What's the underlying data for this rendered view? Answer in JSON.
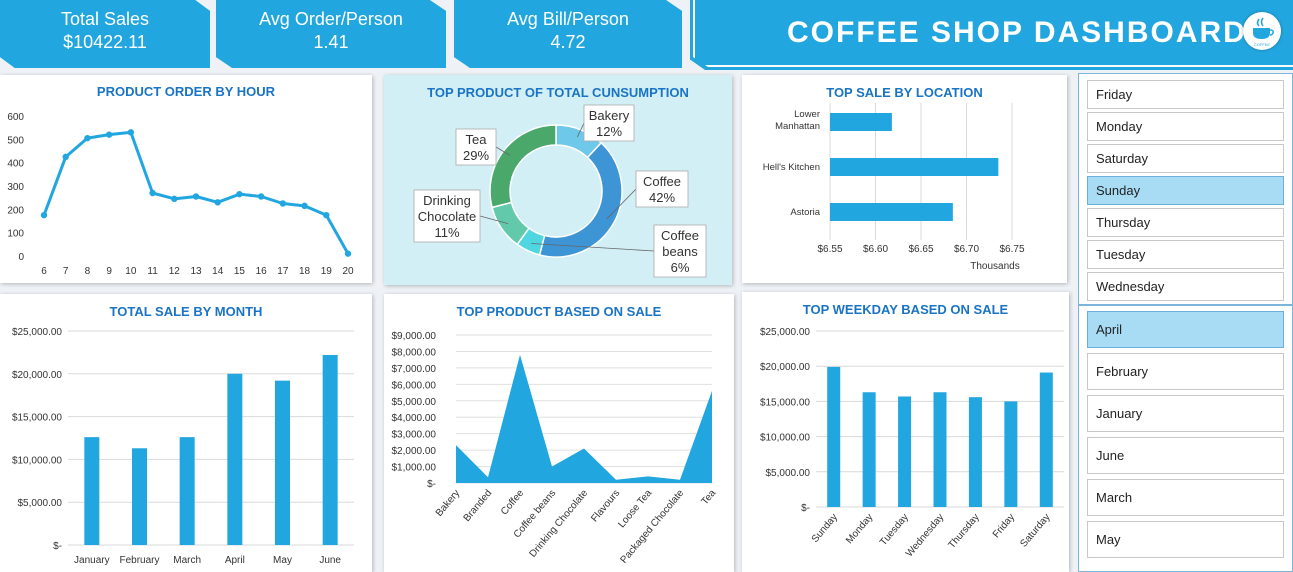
{
  "kpis": [
    {
      "label": "Total Sales",
      "value": "$10422.11"
    },
    {
      "label": "Avg Order/Person",
      "value": "1.41"
    },
    {
      "label": "Avg Bill/Person",
      "value": "4.72"
    }
  ],
  "dashboard_title": "COFFEE SHOP DASHBOARD",
  "logo_text": "COFFEE",
  "colors": {
    "accent": "#22a6e0",
    "title": "#1a74c5",
    "bar": "#22a6e0",
    "panel_teal": "#d2eff5"
  },
  "slicers": {
    "weekdays": {
      "items": [
        "Friday",
        "Monday",
        "Saturday",
        "Sunday",
        "Thursday",
        "Tuesday",
        "Wednesday"
      ],
      "selected": "Sunday"
    },
    "months": {
      "items": [
        "April",
        "February",
        "January",
        "June",
        "March",
        "May"
      ],
      "selected": "April"
    }
  },
  "chart_data": [
    {
      "id": "hour",
      "type": "line",
      "title": "PRODUCT ORDER BY HOUR",
      "x": [
        6,
        7,
        8,
        9,
        10,
        11,
        12,
        13,
        14,
        15,
        16,
        17,
        18,
        19,
        20
      ],
      "values": [
        175,
        425,
        505,
        520,
        530,
        270,
        245,
        255,
        230,
        265,
        255,
        225,
        215,
        175,
        10
      ],
      "ylim": [
        0,
        600
      ],
      "yticks": [
        0,
        100,
        200,
        300,
        400,
        500,
        600
      ],
      "grid": false
    },
    {
      "id": "consumption",
      "type": "pie",
      "title": "TOP PRODUCT OF TOTAL CUNSUMPTION",
      "slices": [
        {
          "label": "Bakery",
          "value": 12,
          "display": "12%",
          "color": "#6ec8ea"
        },
        {
          "label": "Coffee",
          "value": 42,
          "display": "42%",
          "color": "#3d95d6"
        },
        {
          "label": "Coffee beans",
          "value": 6,
          "display": "6%",
          "color": "#4fd6e0"
        },
        {
          "label": "Drinking Chocolate",
          "value": 11,
          "display": "11%",
          "color": "#63c9ab"
        },
        {
          "label": "Tea",
          "value": 29,
          "display": "29%",
          "color": "#4aa86a"
        }
      ]
    },
    {
      "id": "location",
      "type": "bar",
      "orientation": "horizontal",
      "title": "TOP SALE BY LOCATION",
      "categories": [
        "Lower Manhattan",
        "Hell's Kitchen",
        "Astoria"
      ],
      "values": [
        6.618,
        6.735,
        6.685
      ],
      "xlim": [
        6.55,
        6.75
      ],
      "xticks": [
        "$6.55",
        "$6.60",
        "$6.65",
        "$6.70",
        "$6.75"
      ],
      "xlabel": "Thousands",
      "grid": true
    },
    {
      "id": "month",
      "type": "bar",
      "title": "TOTAL SALE BY MONTH",
      "categories": [
        "January",
        "February",
        "March",
        "April",
        "May",
        "June"
      ],
      "values": [
        12600,
        11300,
        12600,
        20000,
        19200,
        22200
      ],
      "ylim": [
        0,
        25000
      ],
      "yticks": [
        "$-",
        "$5,000.00",
        "$10,000.00",
        "$15,000.00",
        "$20,000.00",
        "$25,000.00"
      ],
      "grid": true
    },
    {
      "id": "product",
      "type": "area",
      "title": "TOP PRODUCT BASED ON SALE",
      "categories": [
        "Bakery",
        "Branded",
        "Coffee",
        "Coffee beans",
        "Drinking Chocolate",
        "Flavours",
        "Loose Tea",
        "Packaged Chocolate",
        "Tea"
      ],
      "values": [
        2300,
        350,
        7800,
        1000,
        2100,
        200,
        400,
        200,
        5600
      ],
      "ylim": [
        0,
        9000
      ],
      "yticks": [
        "$-",
        "$1,000.00",
        "$2,000.00",
        "$3,000.00",
        "$4,000.00",
        "$5,000.00",
        "$6,000.00",
        "$7,000.00",
        "$8,000.00",
        "$9,000.00"
      ],
      "grid": true
    },
    {
      "id": "weekday",
      "type": "bar",
      "title": "TOP WEEKDAY BASED ON SALE",
      "categories": [
        "Sunday",
        "Monday",
        "Tuesday",
        "Wednesday",
        "Thursday",
        "Friday",
        "Saturday"
      ],
      "values": [
        19900,
        16300,
        15700,
        16300,
        15600,
        15000,
        19100
      ],
      "ylim": [
        0,
        25000
      ],
      "yticks": [
        "$-",
        "$5,000.00",
        "$10,000.00",
        "$15,000.00",
        "$20,000.00",
        "$25,000.00"
      ],
      "grid": true
    }
  ]
}
